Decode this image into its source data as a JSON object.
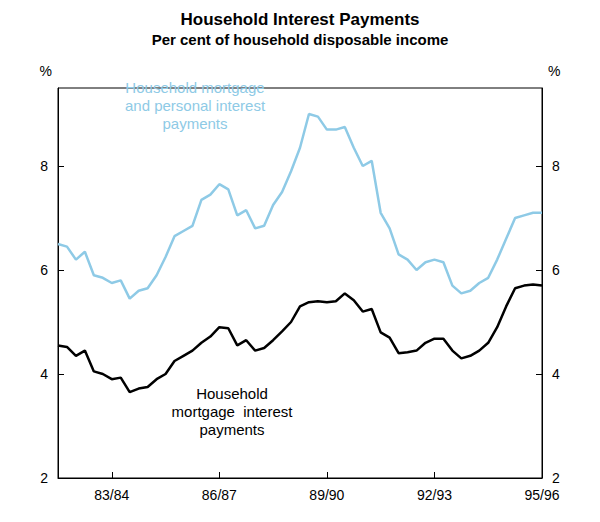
{
  "chart_data": {
    "type": "line",
    "title": "Household Interest Payments",
    "subtitle": "Per cent of household disposable income",
    "ylabel": "%",
    "categories": [
      null,
      null,
      null,
      null,
      null,
      null,
      "83/84",
      null,
      null,
      null,
      null,
      null,
      null,
      null,
      null,
      null,
      null,
      null,
      "86/87",
      null,
      null,
      null,
      null,
      null,
      null,
      null,
      null,
      null,
      null,
      null,
      "89/90",
      null,
      null,
      null,
      null,
      null,
      null,
      null,
      null,
      null,
      null,
      null,
      "92/93",
      null,
      null,
      null,
      null,
      null,
      null,
      null,
      null,
      null,
      null,
      null,
      "95/96"
    ],
    "series": [
      {
        "name": "Household mortgage\nand personal interest\npayments",
        "color": "#8ecae6",
        "values": [
          6.5,
          6.45,
          6.2,
          6.35,
          5.9,
          5.85,
          5.75,
          5.8,
          5.45,
          5.6,
          5.65,
          5.9,
          6.25,
          6.65,
          6.75,
          6.85,
          7.35,
          7.45,
          7.65,
          7.55,
          7.05,
          7.15,
          6.8,
          6.85,
          7.25,
          7.5,
          7.9,
          8.35,
          9.0,
          8.95,
          8.7,
          8.7,
          8.75,
          8.35,
          8.0,
          8.1,
          7.1,
          6.8,
          6.3,
          6.2,
          6.0,
          6.15,
          6.2,
          6.15,
          5.7,
          5.55,
          5.6,
          5.75,
          5.85,
          6.2,
          6.6,
          7.0,
          7.05,
          7.1,
          7.1
        ]
      },
      {
        "name": "Household\nmortgage  interest\npayments",
        "color": "#000000",
        "values": [
          4.55,
          4.52,
          4.35,
          4.45,
          4.05,
          4.0,
          3.9,
          3.93,
          3.65,
          3.72,
          3.75,
          3.9,
          4.0,
          4.25,
          4.35,
          4.45,
          4.6,
          4.72,
          4.9,
          4.88,
          4.55,
          4.65,
          4.45,
          4.5,
          4.65,
          4.82,
          5.0,
          5.3,
          5.38,
          5.4,
          5.38,
          5.4,
          5.55,
          5.42,
          5.2,
          5.25,
          4.8,
          4.7,
          4.4,
          4.42,
          4.45,
          4.6,
          4.68,
          4.68,
          4.45,
          4.3,
          4.35,
          4.45,
          4.6,
          4.9,
          5.3,
          5.65,
          5.7,
          5.72,
          5.7
        ]
      }
    ],
    "ylim": [
      2,
      9.5
    ],
    "yticks": [
      2,
      4,
      6,
      8
    ],
    "grid": false
  }
}
